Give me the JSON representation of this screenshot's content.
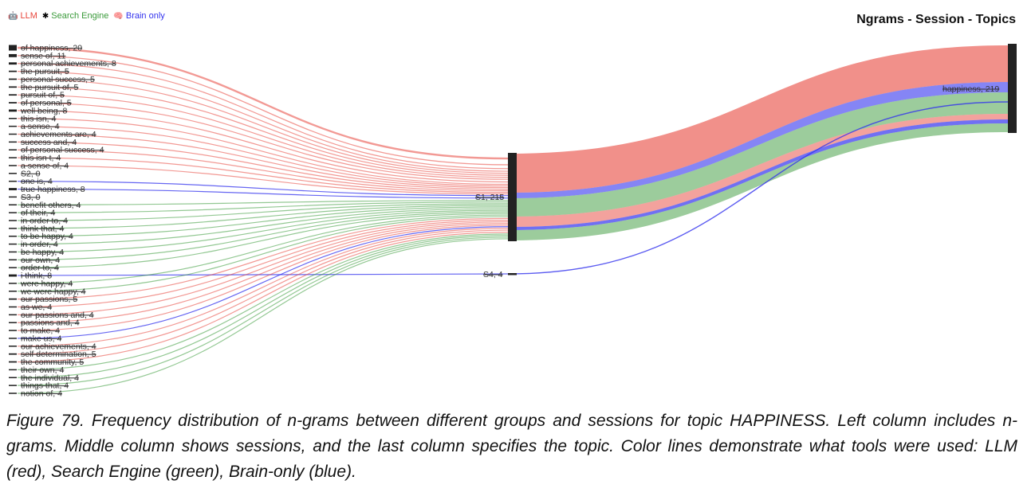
{
  "legend": [
    {
      "label": "LLM",
      "color": "#e8463c",
      "icon": "robot-icon",
      "symbol": "🤖"
    },
    {
      "label": "Search Engine",
      "color": "#3a9a3a",
      "icon": "bug-icon",
      "symbol": "✱"
    },
    {
      "label": "Brain only",
      "color": "#3333ee",
      "icon": "brain-icon",
      "symbol": "🧠"
    }
  ],
  "title": "Ngrams - Session - Topics",
  "caption": "Figure 79. Frequency distribution of n-grams between different groups and sessions for topic HAPPINESS. Left column includes n-grams. Middle column shows sessions, and the last column specifies the topic. Color lines demonstrate what tools were used: LLM (red), Search Engine (green), Brain-only (blue).",
  "chart_data": {
    "type": "sankey",
    "title": "Ngrams - Session - Topics",
    "colors": {
      "LLM": "#e8463c",
      "Search Engine": "#3a9a3a",
      "Brain only": "#3333ee"
    },
    "ngrams": [
      {
        "label": "of happiness, 20",
        "value": 20,
        "group": "LLM"
      },
      {
        "label": "sense of, 11",
        "value": 11,
        "group": "LLM"
      },
      {
        "label": "personal achievements, 8",
        "value": 8,
        "group": "LLM"
      },
      {
        "label": "the pursuit, 5",
        "value": 5,
        "group": "LLM"
      },
      {
        "label": "personal success, 5",
        "value": 5,
        "group": "LLM"
      },
      {
        "label": "the pursuit of, 5",
        "value": 5,
        "group": "LLM"
      },
      {
        "label": "pursuit of, 5",
        "value": 5,
        "group": "LLM"
      },
      {
        "label": "of personal, 5",
        "value": 5,
        "group": "LLM"
      },
      {
        "label": "well being, 8",
        "value": 8,
        "group": "LLM"
      },
      {
        "label": "this isn, 4",
        "value": 4,
        "group": "LLM"
      },
      {
        "label": "a sense, 4",
        "value": 4,
        "group": "LLM"
      },
      {
        "label": "achievements are, 4",
        "value": 4,
        "group": "LLM"
      },
      {
        "label": "success and, 4",
        "value": 4,
        "group": "LLM"
      },
      {
        "label": "of personal success, 4",
        "value": 4,
        "group": "LLM"
      },
      {
        "label": "this isn t, 4",
        "value": 4,
        "group": "LLM"
      },
      {
        "label": "a sense of, 4",
        "value": 4,
        "group": "LLM"
      },
      {
        "label": "S2, 0",
        "value": 0,
        "group": "Brain only"
      },
      {
        "label": "one is, 4",
        "value": 4,
        "group": "Brain only"
      },
      {
        "label": "true happiness, 8",
        "value": 8,
        "group": "Brain only"
      },
      {
        "label": "S3, 0",
        "value": 0,
        "group": "Brain only"
      },
      {
        "label": "benefit others, 4",
        "value": 4,
        "group": "Search Engine"
      },
      {
        "label": "of their, 4",
        "value": 4,
        "group": "Search Engine"
      },
      {
        "label": "in order to, 4",
        "value": 4,
        "group": "Search Engine"
      },
      {
        "label": "think that, 4",
        "value": 4,
        "group": "Search Engine"
      },
      {
        "label": "to be happy, 4",
        "value": 4,
        "group": "Search Engine"
      },
      {
        "label": "in order, 4",
        "value": 4,
        "group": "Search Engine"
      },
      {
        "label": "be happy, 4",
        "value": 4,
        "group": "Search Engine"
      },
      {
        "label": "our own, 4",
        "value": 4,
        "group": "Search Engine"
      },
      {
        "label": "order to, 4",
        "value": 4,
        "group": "Search Engine"
      },
      {
        "label": "i think, 8",
        "value": 8,
        "group": "Brain only"
      },
      {
        "label": "were happy, 4",
        "value": 4,
        "group": "Search Engine"
      },
      {
        "label": "we were happy, 4",
        "value": 4,
        "group": "Search Engine"
      },
      {
        "label": "our passions, 5",
        "value": 5,
        "group": "LLM"
      },
      {
        "label": "as we, 4",
        "value": 4,
        "group": "LLM"
      },
      {
        "label": "our passions and, 4",
        "value": 4,
        "group": "LLM"
      },
      {
        "label": "passions and, 4",
        "value": 4,
        "group": "LLM"
      },
      {
        "label": "to make, 4",
        "value": 4,
        "group": "LLM"
      },
      {
        "label": "make us, 4",
        "value": 4,
        "group": "Brain only"
      },
      {
        "label": "our achievements, 4",
        "value": 4,
        "group": "LLM"
      },
      {
        "label": "self determination, 5",
        "value": 5,
        "group": "LLM"
      },
      {
        "label": "the community, 5",
        "value": 5,
        "group": "LLM"
      },
      {
        "label": "their own, 4",
        "value": 4,
        "group": "Search Engine"
      },
      {
        "label": "the individual, 4",
        "value": 4,
        "group": "Search Engine"
      },
      {
        "label": "things that, 4",
        "value": 4,
        "group": "Search Engine"
      },
      {
        "label": "notion of, 4",
        "value": 4,
        "group": "Search Engine"
      }
    ],
    "sessions": [
      {
        "label": "S1, 215",
        "value": 215
      },
      {
        "label": "S4, 4",
        "value": 4
      }
    ],
    "topics": [
      {
        "label": "happiness, 219",
        "value": 219
      }
    ]
  }
}
